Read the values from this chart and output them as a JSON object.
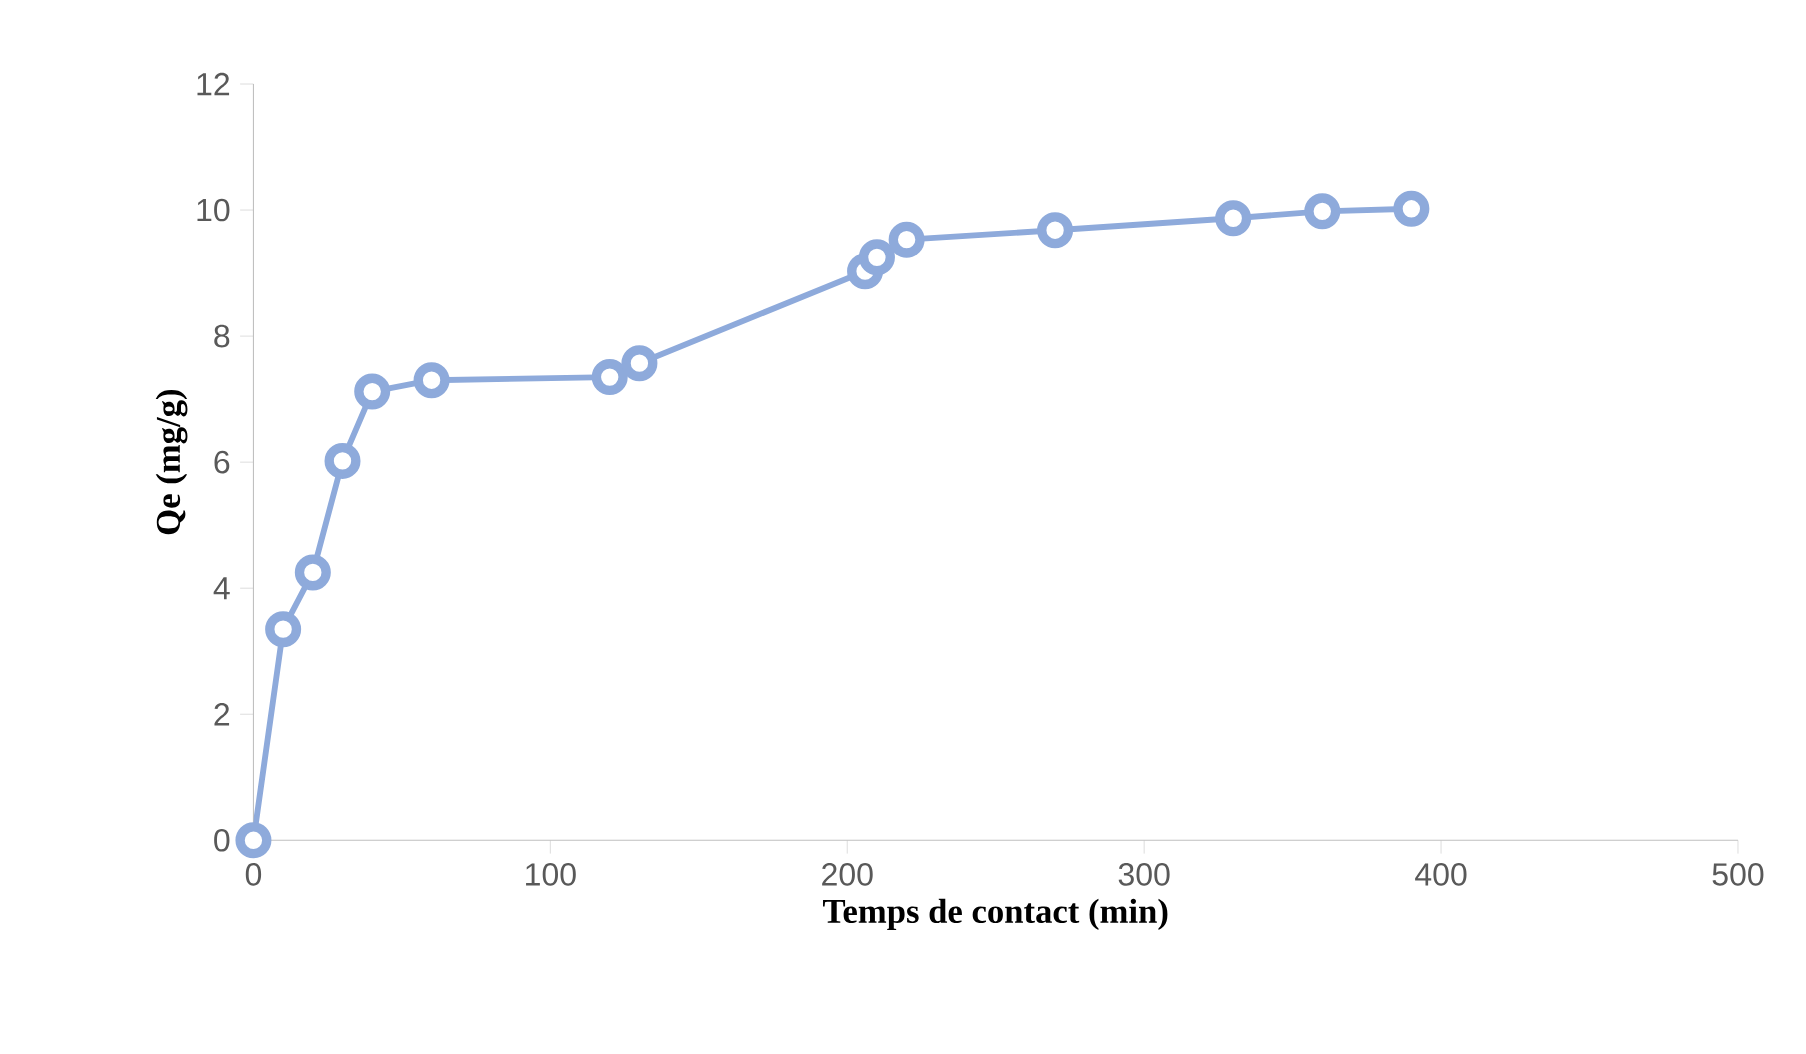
{
  "chart_data": {
    "type": "line",
    "xlabel": "Temps de contact (min)",
    "ylabel": "Qe (mg/g)",
    "xlim": [
      0,
      500
    ],
    "xticks": [
      0,
      100,
      200,
      300,
      400,
      500
    ],
    "ylim": [
      0,
      12
    ],
    "yticks": [
      0,
      2,
      4,
      6,
      8,
      10,
      12
    ],
    "grid": false,
    "marker": "circle",
    "line_style": "solid",
    "series": [
      {
        "color": "#8eaadb",
        "x": [
          0,
          10,
          20,
          30,
          40,
          60,
          120,
          130,
          206,
          210,
          220,
          270,
          330,
          360,
          390
        ],
        "values": [
          0,
          3.35,
          4.25,
          6.02,
          7.12,
          7.3,
          7.35,
          7.57,
          9.03,
          9.25,
          9.53,
          9.68,
          9.87,
          9.98,
          10.02
        ]
      }
    ]
  }
}
